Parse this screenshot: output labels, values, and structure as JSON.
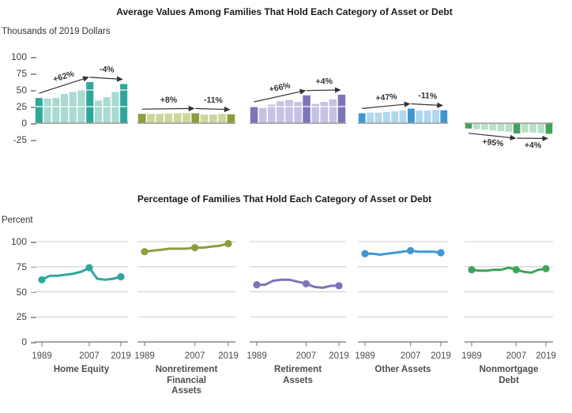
{
  "top_panel": {
    "title": "Average Values Among Families That Hold Each Category of Asset or Debt",
    "unit_label": "Thousands of 2019 Dollars",
    "y_ticks": [
      100,
      75,
      50,
      25,
      0,
      -25
    ],
    "ylim": [
      -25,
      100
    ],
    "gridlines": "white lines over bars at 25 and 50"
  },
  "bottom_panel": {
    "title": "Percentage of Families That Hold Each Category of Asset or Debt",
    "unit_label": "Percent",
    "y_ticks": [
      100,
      75,
      50,
      25,
      0
    ],
    "ylim": [
      0,
      100
    ],
    "x_tick_labels": [
      "1989",
      "2007",
      "2019"
    ],
    "x_tick_years": [
      1989,
      2007,
      2019
    ],
    "gridlines": "gray lines at 25, 50, 75, 100"
  },
  "survey_years": [
    1989,
    1992,
    1995,
    1998,
    2001,
    2004,
    2007,
    2010,
    2013,
    2016,
    2019
  ],
  "chart_data": [
    {
      "category": "Home Equity",
      "label_lines": [
        "Home Equity"
      ],
      "colors": {
        "dark": "#2EA79B",
        "light": "#A7DAD1"
      },
      "bar_chart": {
        "type": "bar",
        "x": [
          1989,
          1992,
          1995,
          1998,
          2001,
          2004,
          2007,
          2010,
          2013,
          2016,
          2019
        ],
        "values": [
          38,
          37,
          38,
          44,
          47,
          51,
          62,
          34,
          39,
          47,
          59
        ],
        "unit": "thousands of 2019 dollars",
        "highlight_years": [
          1989,
          2007,
          2019
        ],
        "annotations": [
          {
            "label": "+62%",
            "from_year": 1989,
            "to_year": 2007
          },
          {
            "label": "-4%",
            "from_year": 2007,
            "to_year": 2019
          }
        ]
      },
      "line_chart": {
        "type": "line",
        "x": [
          1989,
          1992,
          1995,
          1998,
          2001,
          2004,
          2007,
          2010,
          2013,
          2016,
          2019
        ],
        "values": [
          62,
          66,
          66,
          67,
          68,
          70,
          74,
          63,
          62,
          63,
          65
        ],
        "unit": "percent",
        "marker_years": [
          1989,
          2007,
          2019
        ]
      }
    },
    {
      "category": "Nonretirement Financial Assets",
      "label_lines": [
        "Nonretirement",
        "Financial",
        "Assets"
      ],
      "colors": {
        "dark": "#8C9E3E",
        "light": "#CBD79D"
      },
      "bar_chart": {
        "type": "bar",
        "x": [
          1989,
          1992,
          1995,
          1998,
          2001,
          2004,
          2007,
          2010,
          2013,
          2016,
          2019
        ],
        "values": [
          14,
          14,
          14,
          14.5,
          15,
          15,
          15,
          13,
          13,
          14,
          13.5
        ],
        "unit": "thousands of 2019 dollars",
        "highlight_years": [
          1989,
          2007,
          2019
        ],
        "annotations": [
          {
            "label": "+8%",
            "from_year": 1989,
            "to_year": 2007
          },
          {
            "label": "-11%",
            "from_year": 2007,
            "to_year": 2019
          }
        ]
      },
      "line_chart": {
        "type": "line",
        "x": [
          1989,
          1992,
          1995,
          1998,
          2001,
          2004,
          2007,
          2010,
          2013,
          2016,
          2019
        ],
        "values": [
          90,
          91,
          92,
          93,
          93,
          93,
          94,
          94,
          95,
          96,
          98
        ],
        "unit": "percent",
        "marker_years": [
          1989,
          2007,
          2019
        ]
      }
    },
    {
      "category": "Retirement Assets",
      "label_lines": [
        "Retirement",
        "Assets"
      ],
      "colors": {
        "dark": "#7C75B8",
        "light": "#C5C2E3"
      },
      "bar_chart": {
        "type": "bar",
        "x": [
          1989,
          1992,
          1995,
          1998,
          2001,
          2004,
          2007,
          2010,
          2013,
          2016,
          2019
        ],
        "values": [
          25,
          23,
          28,
          33,
          35,
          32,
          42,
          29,
          32,
          36,
          43
        ],
        "unit": "thousands of 2019 dollars",
        "highlight_years": [
          1989,
          2007,
          2019
        ],
        "annotations": [
          {
            "label": "+66%",
            "from_year": 1989,
            "to_year": 2007
          },
          {
            "label": "+4%",
            "from_year": 2007,
            "to_year": 2019
          }
        ]
      },
      "line_chart": {
        "type": "line",
        "x": [
          1989,
          1992,
          1995,
          1998,
          2001,
          2004,
          2007,
          2010,
          2013,
          2016,
          2019
        ],
        "values": [
          57,
          57,
          61,
          62,
          62,
          60,
          58,
          55,
          54,
          56,
          56
        ],
        "unit": "percent",
        "marker_years": [
          1989,
          2007,
          2019
        ]
      }
    },
    {
      "category": "Other Assets",
      "label_lines": [
        "Other Assets"
      ],
      "colors": {
        "dark": "#3E96D2",
        "light": "#B2D7EE"
      },
      "bar_chart": {
        "type": "bar",
        "x": [
          1989,
          1992,
          1995,
          1998,
          2001,
          2004,
          2007,
          2010,
          2013,
          2016,
          2019
        ],
        "values": [
          15,
          16,
          16,
          17,
          18,
          19,
          22,
          19,
          19,
          20,
          19.5
        ],
        "unit": "thousands of 2019 dollars",
        "highlight_years": [
          1989,
          2007,
          2019
        ],
        "annotations": [
          {
            "label": "+47%",
            "from_year": 1989,
            "to_year": 2007
          },
          {
            "label": "-11%",
            "from_year": 2007,
            "to_year": 2019
          }
        ]
      },
      "line_chart": {
        "type": "line",
        "x": [
          1989,
          1992,
          1995,
          1998,
          2001,
          2004,
          2007,
          2010,
          2013,
          2016,
          2019
        ],
        "values": [
          88,
          88,
          87,
          88,
          89,
          90,
          91,
          90,
          90,
          90,
          89
        ],
        "unit": "percent",
        "marker_years": [
          1989,
          2007,
          2019
        ]
      }
    },
    {
      "category": "Nonmortgage Debt",
      "label_lines": [
        "Nonmortgage",
        "Debt"
      ],
      "colors": {
        "dark": "#41A35A",
        "light": "#B9E0C6"
      },
      "bar_chart": {
        "type": "bar",
        "x": [
          1989,
          1992,
          1995,
          1998,
          2001,
          2004,
          2007,
          2010,
          2013,
          2016,
          2019
        ],
        "values": [
          -8,
          -9,
          -10,
          -11,
          -12,
          -13,
          -15.5,
          -14,
          -14,
          -15,
          -16
        ],
        "unit": "thousands of 2019 dollars",
        "highlight_years": [
          1989,
          2007,
          2019
        ],
        "annotations": [
          {
            "label": "+95%",
            "from_year": 1989,
            "to_year": 2007
          },
          {
            "label": "+4%",
            "from_year": 2007,
            "to_year": 2019
          }
        ]
      },
      "line_chart": {
        "type": "line",
        "x": [
          1989,
          1992,
          1995,
          1998,
          2001,
          2004,
          2007,
          2010,
          2013,
          2016,
          2019
        ],
        "values": [
          72,
          71,
          71,
          72,
          72,
          74,
          72,
          70,
          69,
          72,
          73
        ],
        "unit": "percent",
        "marker_years": [
          1989,
          2007,
          2019
        ]
      }
    }
  ]
}
